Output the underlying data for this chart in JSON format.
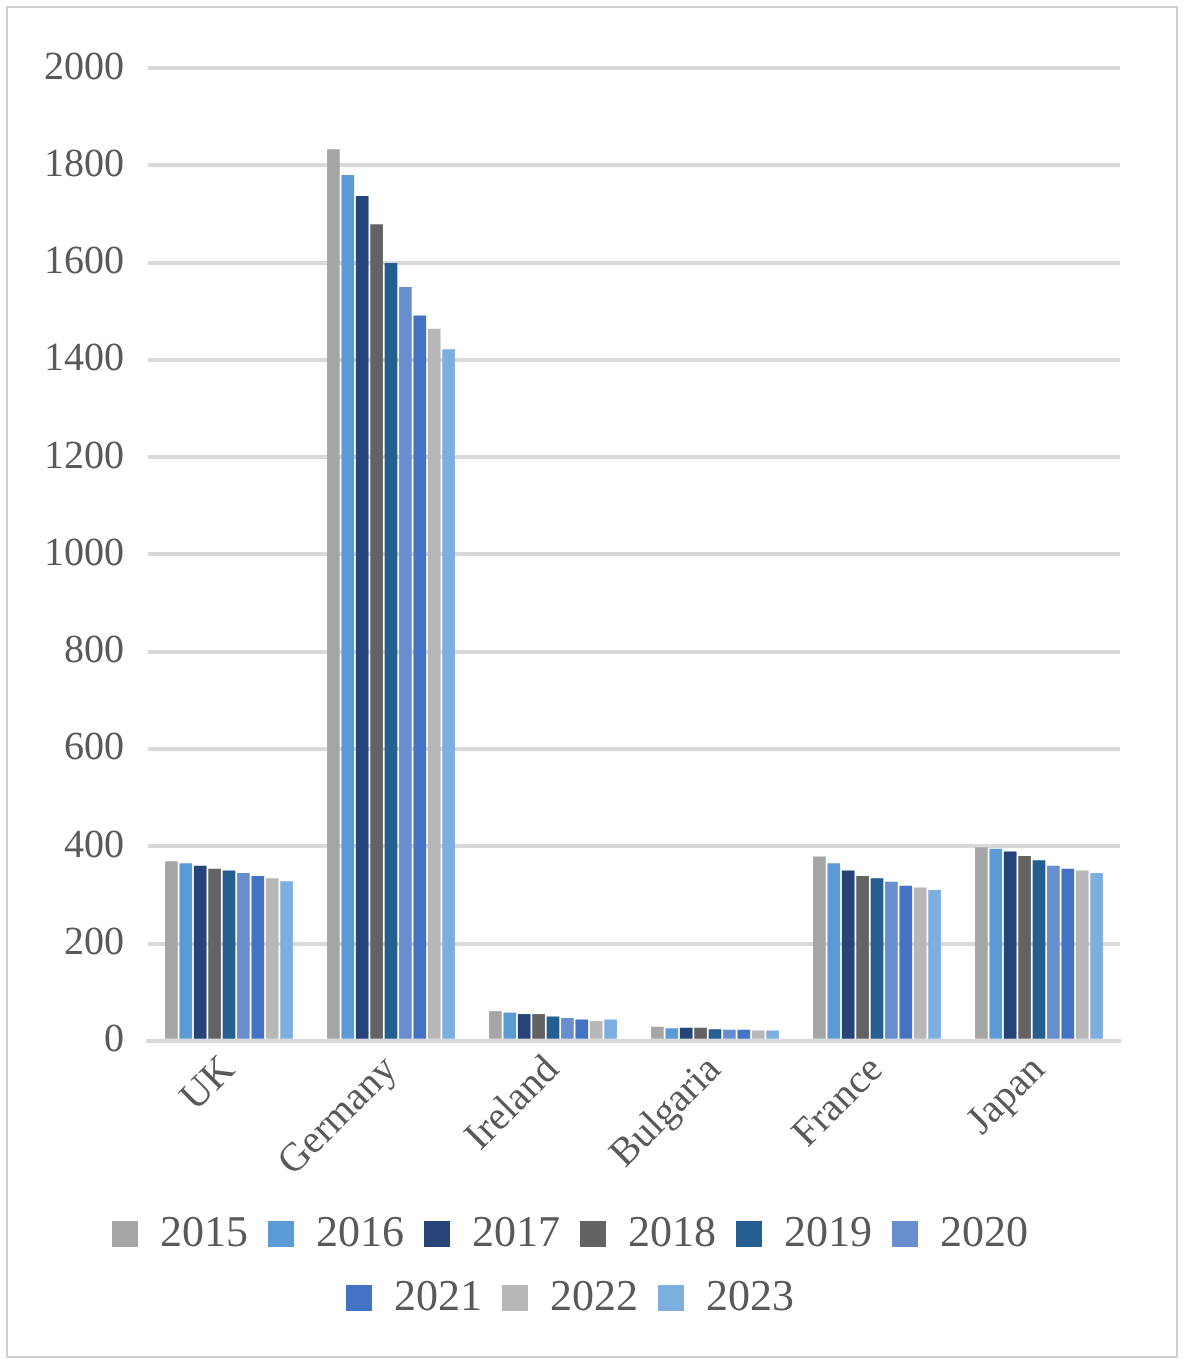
{
  "chart_data": {
    "type": "bar",
    "categories": [
      "UK",
      "Germany",
      "Ireland",
      "Bulgaria",
      "France",
      "Japan"
    ],
    "series": [
      {
        "name": "2015",
        "color": "#a5a5a5",
        "values": [
          369,
          1833,
          61,
          29,
          379,
          398
        ]
      },
      {
        "name": "2016",
        "color": "#5b9bd5",
        "values": [
          365,
          1780,
          58,
          26,
          365,
          395
        ]
      },
      {
        "name": "2017",
        "color": "#264478",
        "values": [
          360,
          1737,
          55,
          27,
          350,
          389
        ]
      },
      {
        "name": "2018",
        "color": "#636363",
        "values": [
          354,
          1679,
          55,
          27,
          339,
          380
        ]
      },
      {
        "name": "2019",
        "color": "#255e91",
        "values": [
          350,
          1599,
          50,
          24,
          334,
          371
        ]
      },
      {
        "name": "2020",
        "color": "#698ed0",
        "values": [
          345,
          1550,
          47,
          23,
          327,
          360
        ]
      },
      {
        "name": "2021",
        "color": "#4472c4",
        "values": [
          339,
          1491,
          44,
          23,
          319,
          354
        ]
      },
      {
        "name": "2022",
        "color": "#b7b7b7",
        "values": [
          334,
          1464,
          41,
          21,
          315,
          350
        ]
      },
      {
        "name": "2023",
        "color": "#7cafdd",
        "values": [
          328,
          1422,
          44,
          21,
          310,
          345
        ]
      }
    ],
    "ylim": [
      0,
      2000
    ],
    "yticks": [
      0,
      200,
      400,
      600,
      800,
      1000,
      1200,
      1400,
      1600,
      1800,
      2000
    ],
    "grid": "y",
    "legend": "bottom"
  }
}
